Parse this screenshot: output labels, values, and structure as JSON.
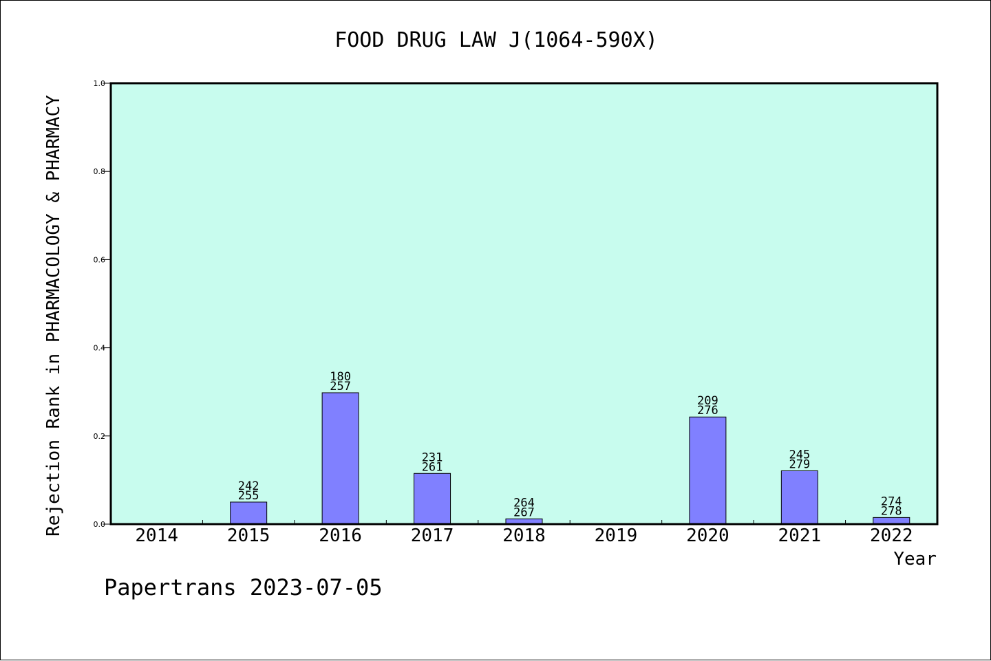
{
  "chart_data": {
    "type": "bar",
    "title": "FOOD DRUG LAW J(1064-590X)",
    "xlabel": "Year",
    "ylabel": "Rejection Rank in PHARMACOLOGY & PHARMACY",
    "categories": [
      "2014",
      "2015",
      "2016",
      "2017",
      "2018",
      "2019",
      "2020",
      "2021",
      "2022"
    ],
    "values": [
      0,
      0.05,
      0.298,
      0.115,
      0.012,
      0,
      0.243,
      0.121,
      0.015
    ],
    "label_top": [
      "",
      "242",
      "180",
      "231",
      "264",
      "",
      "209",
      "245",
      "274"
    ],
    "label_bottom": [
      "",
      "255",
      "257",
      "261",
      "267",
      "",
      "276",
      "279",
      "278"
    ],
    "ylim": [
      0,
      1.0
    ],
    "yticks": [
      "0.0",
      "0.2",
      "0.4",
      "0.6",
      "0.8",
      "1.0"
    ],
    "grid": false,
    "colors": {
      "plot_bg": "#c8fcee",
      "bar": "#8080ff",
      "bar_edge": "#000000"
    }
  },
  "footer": "Papertrans 2023-07-05"
}
